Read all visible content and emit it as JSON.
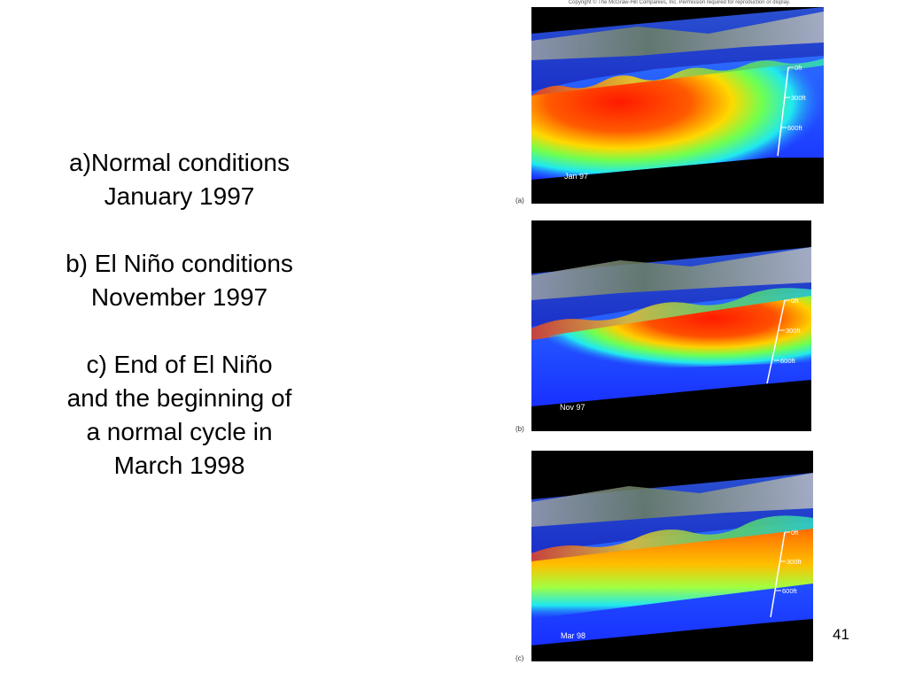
{
  "copyright": "Copyright © The McGraw-Hill Companies, Inc. Permission required for reproduction or display.",
  "captions": [
    {
      "lines": [
        "a)Normal conditions",
        "January 1997"
      ]
    },
    {
      "lines": [
        "b) El Niño conditions",
        "November 1997"
      ]
    },
    {
      "lines": [
        "c) End of El Niño",
        "and the beginning of",
        "a normal cycle in",
        "March 1998"
      ]
    }
  ],
  "panels": [
    {
      "label": "(a)",
      "date": "Jan 97",
      "depths": [
        "0ft",
        "300ft",
        "600ft"
      ]
    },
    {
      "label": "(b)",
      "date": "Nov 97",
      "depths": [
        "0ft",
        "300ft",
        "600ft"
      ]
    },
    {
      "label": "(c)",
      "date": "Mar 98",
      "depths": [
        "0ft",
        "300ft",
        "600ft"
      ]
    }
  ],
  "page_number": "41"
}
